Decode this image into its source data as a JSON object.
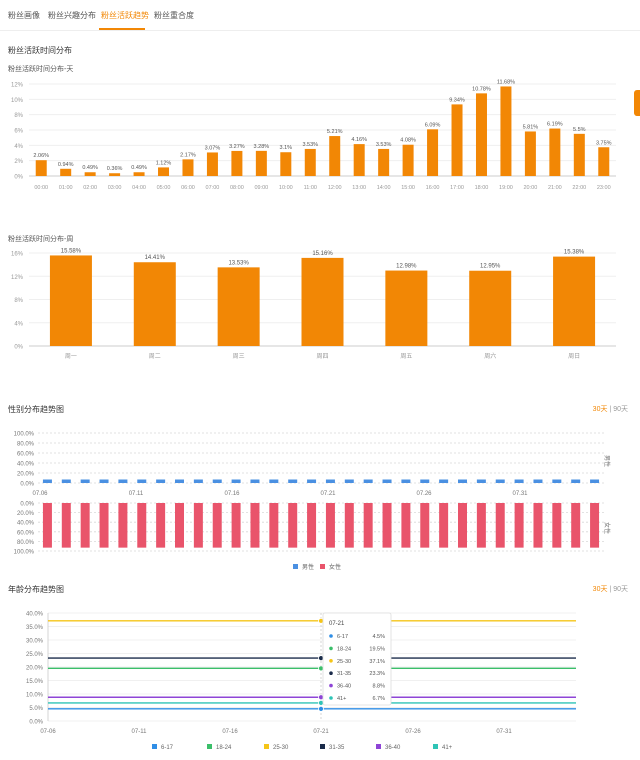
{
  "tabs": [
    {
      "label": "粉丝画像",
      "active": false
    },
    {
      "label": "粉丝兴趣分布",
      "active": false
    },
    {
      "label": "粉丝活跃趋势",
      "active": true
    },
    {
      "label": "粉丝重合度",
      "active": false
    }
  ],
  "section_activity_title": "粉丝活跃时间分布",
  "range_labels": {
    "days30": "30天",
    "sep": "|",
    "days90": "90天"
  },
  "colors": {
    "orange": "#f28705",
    "male": "#4a90e2",
    "female": "#e9546b",
    "age": [
      "#2f8ee6",
      "#3bbf6a",
      "#f5c518",
      "#1a2b4a",
      "#8e44d6",
      "#2ec4b6"
    ]
  },
  "chart_data": [
    {
      "type": "bar",
      "title": "粉丝活跃时间分布-天",
      "categories": [
        "00:00",
        "01:00",
        "02:00",
        "03:00",
        "04:00",
        "05:00",
        "06:00",
        "07:00",
        "08:00",
        "09:00",
        "10:00",
        "11:00",
        "12:00",
        "13:00",
        "14:00",
        "15:00",
        "16:00",
        "17:00",
        "18:00",
        "19:00",
        "20:00",
        "21:00",
        "22:00",
        "23:00"
      ],
      "values": [
        2.06,
        0.94,
        0.49,
        0.36,
        0.49,
        1.12,
        2.17,
        3.07,
        3.27,
        3.28,
        3.1,
        3.53,
        5.21,
        4.16,
        3.53,
        4.08,
        6.09,
        9.34,
        10.78,
        11.68,
        5.81,
        6.19,
        5.5,
        3.75
      ],
      "data_labels": [
        "2.06%",
        "0.94%",
        "0.49%",
        "0.36%",
        "0.49%",
        "1.12%",
        "2.17%",
        "3.07%",
        "3.27%",
        "3.28%",
        "3.1%",
        "3.53%",
        "5.21%",
        "4.16%",
        "3.53%",
        "4.08%",
        "6.09%",
        "9.34%",
        "10.78%",
        "11.68%",
        "5.81%",
        "6.19%",
        "5.5%",
        "3.75%"
      ],
      "ylim": [
        0,
        12
      ],
      "y_ticks": [
        "0%",
        "2%",
        "4%",
        "6%",
        "8%",
        "10%",
        "12%"
      ]
    },
    {
      "type": "bar",
      "title": "粉丝活跃时间分布-周",
      "categories": [
        "周一",
        "周二",
        "周三",
        "周四",
        "周五",
        "周六",
        "周日"
      ],
      "values": [
        15.58,
        14.41,
        13.53,
        15.16,
        12.98,
        12.95,
        15.38
      ],
      "data_labels": [
        "15.58%",
        "14.41%",
        "13.53%",
        "15.16%",
        "12.98%",
        "12.95%",
        "15.38%"
      ],
      "ylim": [
        0,
        16
      ],
      "y_ticks": [
        "0%",
        "4%",
        "8%",
        "12%",
        "16%"
      ]
    },
    {
      "type": "bar",
      "title": "性别分布趋势图",
      "x_ticks": [
        "07.06",
        "07.11",
        "07.16",
        "07.21",
        "07.26",
        "07.31"
      ],
      "num_bars": 30,
      "series": [
        {
          "name": "男性",
          "value": 7
        },
        {
          "name": "女性",
          "value": 93
        }
      ],
      "ylim": [
        0,
        100
      ],
      "y_ticks_top": [
        "100.0%",
        "80.0%",
        "60.0%",
        "40.0%",
        "20.0%",
        "0.0%"
      ],
      "y_ticks_bottom": [
        "0.0%",
        "20.0%",
        "40.0%",
        "60.0%",
        "80.0%",
        "100.0%"
      ],
      "side_labels": [
        "男性",
        "女性"
      ]
    },
    {
      "type": "line",
      "title": "年龄分布趋势图",
      "x_ticks": [
        "07-06",
        "07-11",
        "07-16",
        "07-21",
        "07-26",
        "07-31"
      ],
      "y_ticks": [
        "0.0%",
        "5.0%",
        "10.0%",
        "15.0%",
        "20.0%",
        "25.0%",
        "30.0%",
        "35.0%",
        "40.0%"
      ],
      "ylim": [
        0,
        40
      ],
      "series": [
        {
          "name": "6-17",
          "value": 4.5,
          "label": "4.5%"
        },
        {
          "name": "18-24",
          "value": 19.5,
          "label": "19.5%"
        },
        {
          "name": "25-30",
          "value": 37.1,
          "label": "37.1%"
        },
        {
          "name": "31-35",
          "value": 23.3,
          "label": "23.3%"
        },
        {
          "name": "36-40",
          "value": 8.8,
          "label": "8.8%"
        },
        {
          "name": "41+",
          "value": 6.7,
          "label": "6.7%"
        }
      ],
      "tooltip": {
        "date": "07-21"
      }
    }
  ]
}
